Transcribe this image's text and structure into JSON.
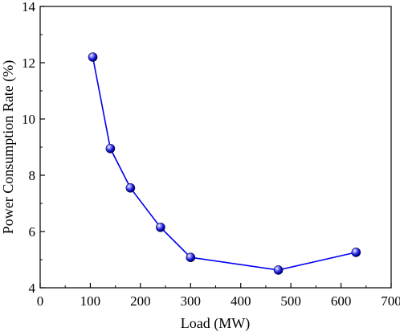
{
  "chart_data": {
    "type": "line",
    "title": "",
    "xlabel": "Load (MW)",
    "ylabel": "Power Consumption Rate (%)",
    "xlim": [
      0,
      700
    ],
    "ylim": [
      4,
      14
    ],
    "xticks": [
      0,
      100,
      200,
      300,
      400,
      500,
      600,
      700
    ],
    "yticks": [
      4,
      6,
      8,
      10,
      12,
      14
    ],
    "grid": false,
    "legend": "none",
    "series": [
      {
        "color": "#0000ee",
        "marker": "sphere",
        "points": [
          {
            "x": 105,
            "y": 12.2
          },
          {
            "x": 140,
            "y": 8.95
          },
          {
            "x": 180,
            "y": 7.55
          },
          {
            "x": 240,
            "y": 6.15
          },
          {
            "x": 300,
            "y": 5.08
          },
          {
            "x": 475,
            "y": 4.63
          },
          {
            "x": 630,
            "y": 5.26
          }
        ]
      }
    ]
  }
}
